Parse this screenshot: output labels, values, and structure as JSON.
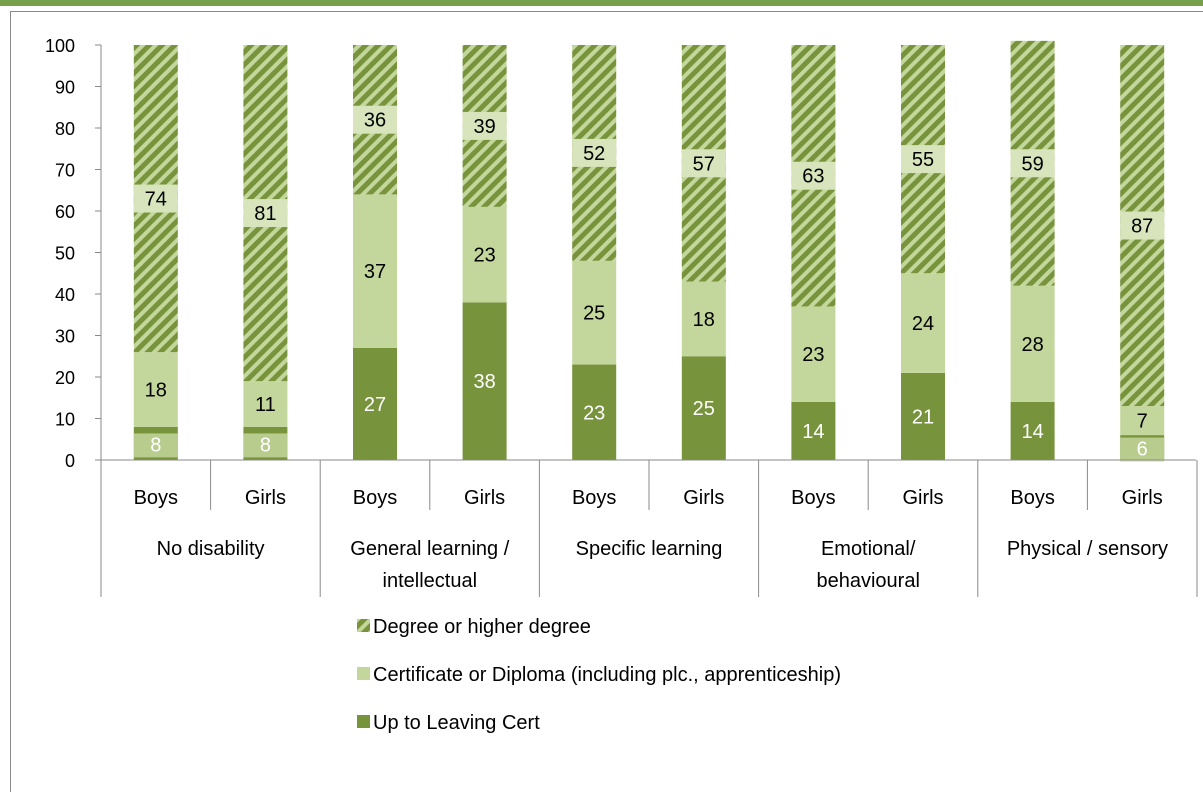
{
  "chart_data": {
    "type": "bar",
    "stacked": true,
    "title": "",
    "xlabel": "",
    "ylabel": "",
    "ylim": [
      0,
      100
    ],
    "yticks": [
      0,
      10,
      20,
      30,
      40,
      50,
      60,
      70,
      80,
      90,
      100
    ],
    "groups": [
      "No disability",
      "General learning / intellectual",
      "Specific learning",
      "Emotional/ behavioural",
      "Physical / sensory"
    ],
    "group_lines": [
      [
        "No disability"
      ],
      [
        "General learning /",
        "intellectual"
      ],
      [
        "Specific learning"
      ],
      [
        "Emotional/",
        "behavioural"
      ],
      [
        "Physical / sensory"
      ]
    ],
    "categories": [
      "Boys",
      "Girls",
      "Boys",
      "Girls",
      "Boys",
      "Girls",
      "Boys",
      "Girls",
      "Boys",
      "Girls"
    ],
    "series": [
      {
        "name": "Up to Leaving Cert",
        "color": "#77933c",
        "pattern": "solid",
        "values": [
          8,
          8,
          27,
          38,
          23,
          25,
          14,
          21,
          14,
          6
        ]
      },
      {
        "name": "Certificate or Diploma (including plc., apprenticeship)",
        "color": "#c3d69b",
        "pattern": "solid",
        "values": [
          18,
          11,
          37,
          23,
          25,
          18,
          23,
          24,
          28,
          7
        ]
      },
      {
        "name": "Degree or higher degree",
        "color": "#77933c",
        "pattern": "diagonal-stripes",
        "values": [
          74,
          81,
          36,
          39,
          52,
          57,
          63,
          55,
          59,
          87
        ]
      }
    ],
    "legend_position": "bottom",
    "grid": false
  }
}
